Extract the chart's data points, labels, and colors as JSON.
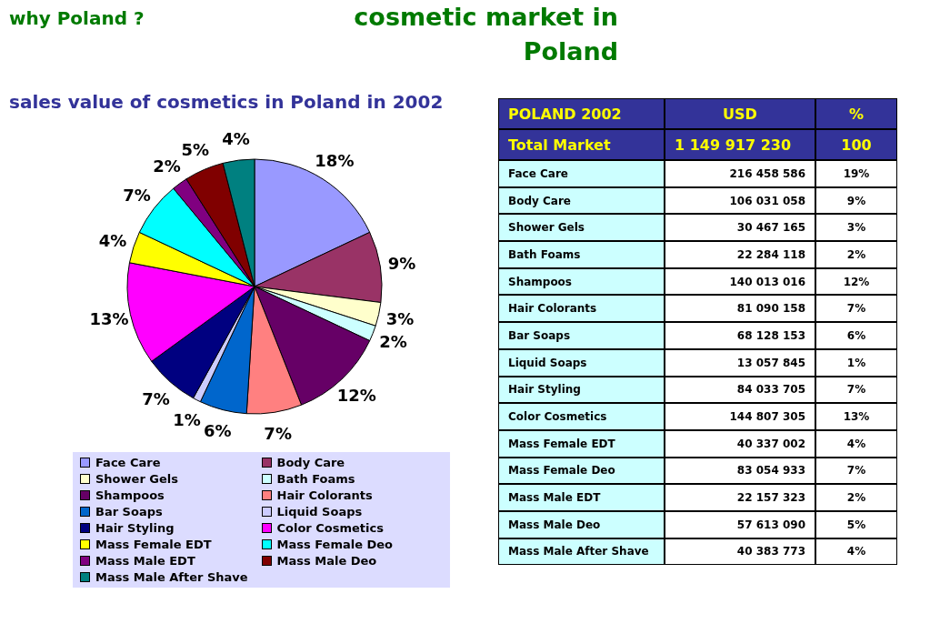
{
  "chart_data": [
    {
      "type": "pie",
      "title": "cosmetic market in Poland",
      "subtitle": "sales value of cosmetics in Poland in 2002",
      "annotations": [
        "why Poland ?"
      ],
      "legend": "bottom",
      "categories": [
        "Face Care",
        "Body Care",
        "Shower Gels",
        "Bath Foams",
        "Shampoos",
        "Hair Colorants",
        "Bar Soaps",
        "Liquid Soaps",
        "Hair Styling",
        "Color Cosmetics",
        "Mass Female EDT",
        "Mass Female Deo",
        "Mass Male EDT",
        "Mass Male Deo",
        "Mass Male After Shave"
      ],
      "values": [
        18,
        9,
        3,
        2,
        12,
        7,
        6,
        1,
        7,
        13,
        4,
        7,
        2,
        5,
        4
      ],
      "value_labels": [
        "18%",
        "9%",
        "3%",
        "2%",
        "12%",
        "7%",
        "6%",
        "1%",
        "7%",
        "13%",
        "4%",
        "7%",
        "2%",
        "5%",
        "4%"
      ],
      "colors": [
        "#9999ff",
        "#993366",
        "#ffffcc",
        "#ccffff",
        "#660066",
        "#ff8080",
        "#0066cc",
        "#ccccff",
        "#000080",
        "#ff00ff",
        "#ffff00",
        "#00ffff",
        "#800080",
        "#800000",
        "#008080"
      ]
    },
    {
      "type": "other",
      "title": "POLAND 2002",
      "annotations": [
        "Total Market",
        "1 149 917 230",
        "100"
      ],
      "categories": [
        "Face Care",
        "Body Care",
        "Shower Gels",
        "Bath Foams",
        "Shampoos",
        "Hair Colorants",
        "Bar Soaps",
        "Liquid Soaps",
        "Hair Styling",
        "Color Cosmetics",
        "Mass Female EDT",
        "Mass Female Deo",
        "Mass Male EDT",
        "Mass Male Deo",
        "Mass Male After Shave"
      ],
      "series": [
        {
          "name": "USD",
          "values": [
            216458586,
            106031058,
            30467165,
            22284118,
            140013016,
            81090158,
            68128153,
            13057845,
            84033705,
            144807305,
            40337002,
            83054933,
            22157323,
            57613090,
            40383773
          ],
          "data_labels": true
        },
        {
          "name": "%",
          "values": [
            19,
            9,
            3,
            2,
            12,
            7,
            6,
            1,
            7,
            13,
            4,
            7,
            2,
            5,
            4
          ],
          "value_labels": [
            "19%",
            "9%",
            "3%",
            "2%",
            "12%",
            "7%",
            "6%",
            "1%",
            "7%",
            "13%",
            "4%",
            "7%",
            "2%",
            "5%",
            "4%"
          ]
        }
      ]
    }
  ]
}
